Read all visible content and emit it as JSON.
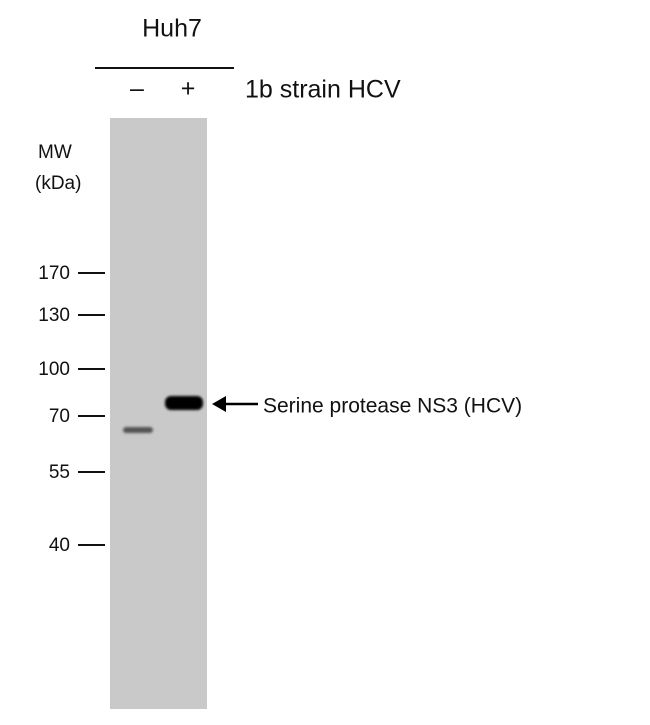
{
  "header": {
    "cell_line": "Huh7",
    "lanes": [
      "–",
      "+"
    ],
    "treatment": "1b strain HCV"
  },
  "mw_axis": {
    "label": "MW",
    "unit": "(kDa)",
    "markers": [
      "170",
      "130",
      "100",
      "70",
      "55",
      "40"
    ]
  },
  "annotation": "Serine protease NS3 (HCV)"
}
